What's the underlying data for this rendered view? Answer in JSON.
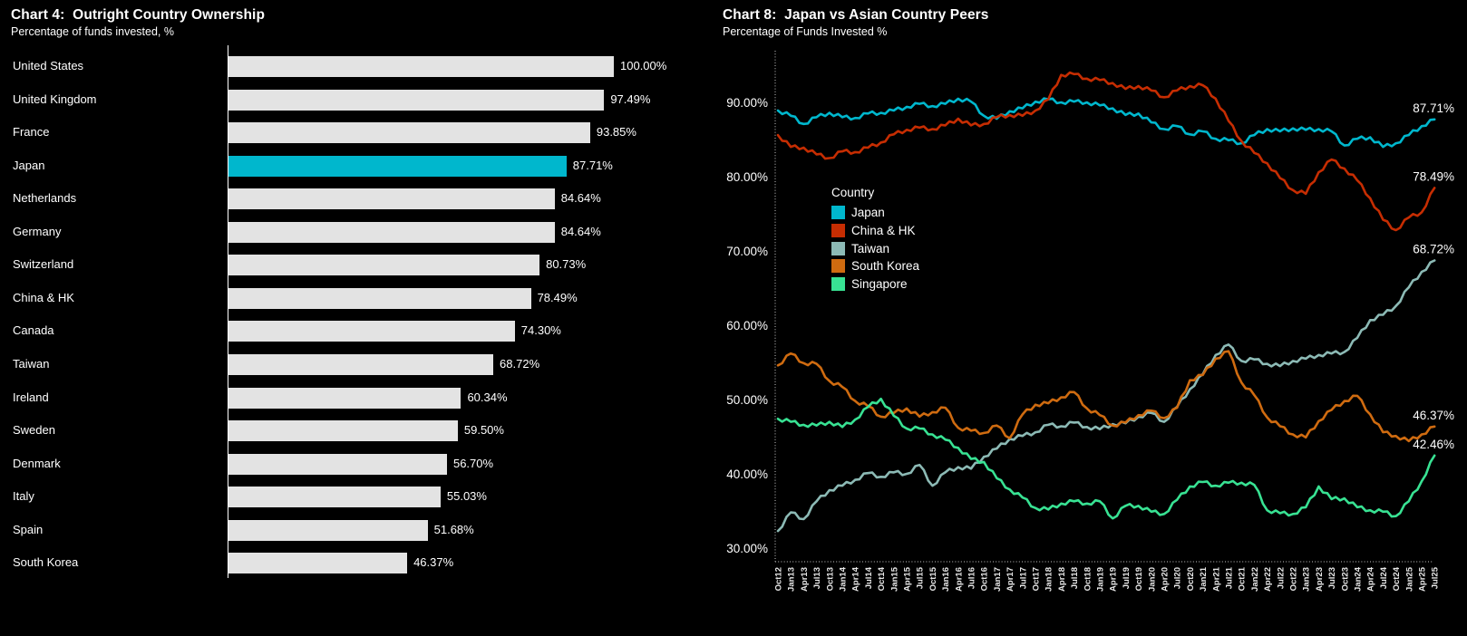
{
  "page": {
    "background": "#000000"
  },
  "colors": {
    "bar_default": "#e3e3e3",
    "highlight_cyan": "#00b7cd",
    "china_red": "#c62d02",
    "taiwan_gray_teal": "#8cbab5",
    "south_korea_orange": "#cf6b10",
    "singapore_green": "#38e293",
    "axis_dotted": "#c9c9c9",
    "text": "#ffffff"
  },
  "chart_data": [
    {
      "id": "chart4",
      "type": "bar",
      "orientation": "horizontal",
      "title": "Chart 4:  Outright Country Ownership",
      "subtitle": "Percentage of funds invested, %",
      "xlim": [
        0,
        100
      ],
      "bar_color": "#e3e3e3",
      "highlight_index": 3,
      "highlight_color": "#00b7cd",
      "categories": [
        "United States",
        "United Kingdom",
        "France",
        "Japan",
        "Netherlands",
        "Germany",
        "Switzerland",
        "China & HK",
        "Canada",
        "Taiwan",
        "Ireland",
        "Sweden",
        "Denmark",
        "Italy",
        "Spain",
        "South Korea"
      ],
      "values": [
        100.0,
        97.49,
        93.85,
        87.71,
        84.64,
        84.64,
        80.73,
        78.49,
        74.3,
        68.72,
        60.34,
        59.5,
        56.7,
        55.03,
        51.68,
        46.37
      ],
      "value_labels": [
        "100.00%",
        "97.49%",
        "93.85%",
        "87.71%",
        "84.64%",
        "84.64%",
        "80.73%",
        "78.49%",
        "74.30%",
        "68.72%",
        "60.34%",
        "59.50%",
        "56.70%",
        "55.03%",
        "51.68%",
        "46.37%"
      ]
    },
    {
      "id": "chart8",
      "type": "line",
      "title": "Chart 8:  Japan vs Asian Country Peers",
      "subtitle": "Percentage of Funds Invested %",
      "legend_title": "Country",
      "legend_position": "inside-left",
      "grid": false,
      "ylim": [
        28,
        96.5
      ],
      "y_ticks": [
        90,
        80,
        70,
        60,
        50,
        40,
        30
      ],
      "y_tick_labels": [
        "90.00%",
        "80.00%",
        "70.00%",
        "60.00%",
        "50.00%",
        "40.00%",
        "30.00%"
      ],
      "x": [
        "Oct12",
        "Jan13",
        "Apr13",
        "Jul13",
        "Oct13",
        "Jan14",
        "Apr14",
        "Jul14",
        "Oct14",
        "Jan15",
        "Apr15",
        "Jul15",
        "Oct15",
        "Jan16",
        "Apr16",
        "Jul16",
        "Oct16",
        "Jan17",
        "Apr17",
        "Jul17",
        "Oct17",
        "Jan18",
        "Apr18",
        "Jul18",
        "Oct18",
        "Jan19",
        "Apr19",
        "Jul19",
        "Oct19",
        "Jan20",
        "Apr20",
        "Jul20",
        "Oct20",
        "Jan21",
        "Apr21",
        "Jul21",
        "Oct21",
        "Jan22",
        "Apr22",
        "Jul22",
        "Oct22",
        "Jan23",
        "Apr23",
        "Jul23",
        "Oct23",
        "Jan24",
        "Apr24",
        "Jul24",
        "Oct24",
        "Jan25",
        "Apr25",
        "Jul25"
      ],
      "series": [
        {
          "name": "Japan",
          "color": "#00b7cd",
          "end_label": "87.71%",
          "values": [
            88.9,
            88.2,
            87.1,
            88.0,
            88.6,
            88.0,
            87.9,
            88.5,
            88.6,
            88.9,
            89.4,
            89.8,
            89.5,
            89.8,
            90.5,
            90.1,
            88.2,
            87.8,
            88.8,
            89.2,
            90.1,
            90.4,
            90.0,
            90.1,
            90.0,
            89.6,
            89.2,
            88.3,
            88.5,
            87.3,
            86.4,
            86.8,
            85.7,
            86.1,
            85.1,
            84.9,
            84.5,
            85.6,
            86.4,
            86.1,
            86.5,
            86.3,
            86.4,
            86.1,
            84.2,
            85.1,
            85.3,
            84.0,
            84.5,
            85.6,
            86.8,
            87.71
          ]
        },
        {
          "name": "China & HK",
          "color": "#c62d02",
          "end_label": "78.49%",
          "values": [
            85.6,
            84.0,
            83.9,
            83.0,
            82.5,
            83.4,
            83.3,
            83.9,
            84.6,
            85.7,
            86.3,
            86.6,
            86.4,
            86.9,
            87.8,
            86.9,
            87.1,
            88.0,
            88.3,
            88.2,
            88.9,
            90.4,
            93.7,
            93.8,
            93.2,
            93.0,
            92.6,
            91.8,
            92.2,
            91.6,
            90.7,
            91.6,
            92.2,
            92.3,
            90.5,
            87.5,
            84.8,
            83.2,
            81.8,
            79.8,
            78.2,
            77.7,
            80.6,
            82.3,
            81.1,
            79.5,
            77.1,
            74.2,
            72.8,
            74.5,
            75.2,
            78.49
          ]
        },
        {
          "name": "Taiwan",
          "color": "#8cbab5",
          "end_label": "68.72%",
          "values": [
            32.3,
            34.8,
            33.9,
            36.3,
            37.8,
            38.4,
            39.2,
            40.1,
            39.6,
            40.2,
            40.0,
            41.2,
            38.4,
            40.2,
            40.9,
            40.7,
            42.3,
            43.4,
            44.7,
            45.1,
            45.6,
            46.6,
            46.4,
            46.9,
            46.3,
            46.0,
            46.7,
            46.8,
            47.7,
            48.2,
            47.0,
            49.0,
            51.4,
            53.4,
            56.0,
            57.4,
            55.2,
            55.4,
            54.8,
            54.5,
            55.2,
            55.5,
            56.0,
            56.2,
            56.4,
            58.3,
            60.7,
            61.4,
            62.6,
            65.1,
            67.2,
            68.72
          ]
        },
        {
          "name": "South Korea",
          "color": "#cf6b10",
          "end_label": "46.37%",
          "values": [
            54.6,
            56.2,
            54.9,
            54.8,
            52.5,
            51.7,
            49.8,
            49.1,
            47.7,
            48.2,
            48.8,
            47.7,
            48.3,
            48.9,
            46.2,
            45.8,
            45.5,
            46.5,
            44.8,
            48.0,
            49.3,
            49.5,
            50.3,
            51.0,
            48.8,
            47.9,
            46.5,
            46.9,
            47.9,
            48.5,
            47.5,
            48.9,
            52.6,
            53.3,
            55.5,
            56.5,
            52.3,
            50.6,
            47.6,
            46.4,
            45.3,
            44.9,
            47.1,
            48.6,
            49.8,
            50.5,
            48.0,
            45.6,
            45.1,
            44.4,
            45.3,
            46.37
          ]
        },
        {
          "name": "Singapore",
          "color": "#38e293",
          "end_label": "42.46%",
          "values": [
            47.4,
            47.0,
            46.6,
            46.5,
            47.0,
            46.3,
            47.3,
            49.0,
            50.1,
            47.8,
            46.1,
            46.1,
            45.3,
            44.6,
            43.5,
            42.0,
            41.6,
            39.4,
            37.9,
            36.8,
            35.4,
            35.2,
            36.0,
            36.3,
            36.0,
            36.3,
            34.0,
            35.7,
            35.7,
            34.9,
            34.6,
            36.5,
            38.3,
            38.9,
            38.4,
            38.8,
            38.8,
            38.5,
            35.1,
            34.7,
            34.6,
            35.5,
            38.3,
            36.6,
            36.7,
            35.5,
            35.1,
            34.9,
            34.3,
            36.3,
            39.0,
            42.46
          ]
        }
      ]
    }
  ]
}
